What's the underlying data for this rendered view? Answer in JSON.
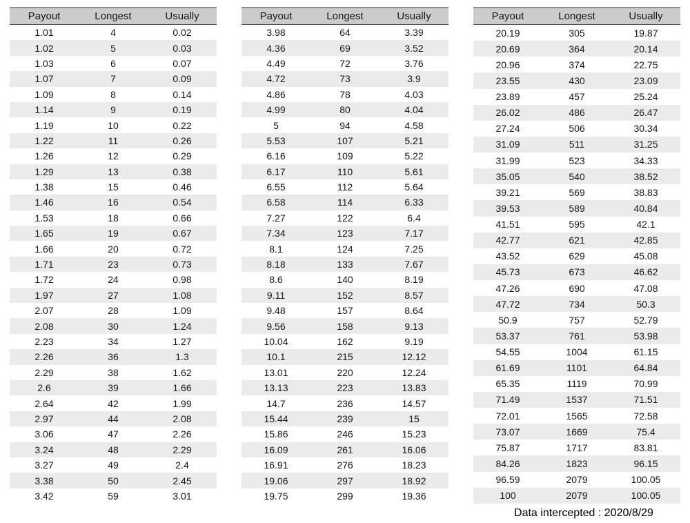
{
  "colors": {
    "header_bg": "#cccccc",
    "stripe_bg": "#ebebeb",
    "header_border_top": "#8f8f8f",
    "header_border_bottom": "#4f4f4f",
    "text": "#161616"
  },
  "footer": {
    "label": "Data intercepted : 2020/8/29"
  },
  "chart_data": [
    {
      "type": "table",
      "columns": [
        "Payout",
        "Longest",
        "Usually"
      ],
      "rows": [
        [
          1.01,
          4,
          0.02
        ],
        [
          1.02,
          5,
          0.03
        ],
        [
          1.03,
          6,
          0.07
        ],
        [
          1.07,
          7,
          0.09
        ],
        [
          1.09,
          8,
          0.14
        ],
        [
          1.14,
          9,
          0.19
        ],
        [
          1.19,
          10,
          0.22
        ],
        [
          1.22,
          11,
          0.26
        ],
        [
          1.26,
          12,
          0.29
        ],
        [
          1.29,
          13,
          0.38
        ],
        [
          1.38,
          15,
          0.46
        ],
        [
          1.46,
          16,
          0.54
        ],
        [
          1.53,
          18,
          0.66
        ],
        [
          1.65,
          19,
          0.67
        ],
        [
          1.66,
          20,
          0.72
        ],
        [
          1.71,
          23,
          0.73
        ],
        [
          1.72,
          24,
          0.98
        ],
        [
          1.97,
          27,
          1.08
        ],
        [
          2.07,
          28,
          1.09
        ],
        [
          2.08,
          30,
          1.24
        ],
        [
          2.23,
          34,
          1.27
        ],
        [
          2.26,
          36,
          1.3
        ],
        [
          2.29,
          38,
          1.62
        ],
        [
          2.6,
          39,
          1.66
        ],
        [
          2.64,
          42,
          1.99
        ],
        [
          2.97,
          44,
          2.08
        ],
        [
          3.06,
          47,
          2.26
        ],
        [
          3.24,
          48,
          2.29
        ],
        [
          3.27,
          49,
          2.4
        ],
        [
          3.38,
          50,
          2.45
        ],
        [
          3.42,
          59,
          3.01
        ]
      ]
    },
    {
      "type": "table",
      "columns": [
        "Payout",
        "Longest",
        "Usually"
      ],
      "rows": [
        [
          3.98,
          64,
          3.39
        ],
        [
          4.36,
          69,
          3.52
        ],
        [
          4.49,
          72,
          3.76
        ],
        [
          4.72,
          73,
          3.9
        ],
        [
          4.86,
          78,
          4.03
        ],
        [
          4.99,
          80,
          4.04
        ],
        [
          5,
          94,
          4.58
        ],
        [
          5.53,
          107,
          5.21
        ],
        [
          6.16,
          109,
          5.22
        ],
        [
          6.17,
          110,
          5.61
        ],
        [
          6.55,
          112,
          5.64
        ],
        [
          6.58,
          114,
          6.33
        ],
        [
          7.27,
          122,
          6.4
        ],
        [
          7.34,
          123,
          7.17
        ],
        [
          8.1,
          124,
          7.25
        ],
        [
          8.18,
          133,
          7.67
        ],
        [
          8.6,
          140,
          8.19
        ],
        [
          9.11,
          152,
          8.57
        ],
        [
          9.48,
          157,
          8.64
        ],
        [
          9.56,
          158,
          9.13
        ],
        [
          10.04,
          162,
          9.19
        ],
        [
          10.1,
          215,
          12.12
        ],
        [
          13.01,
          220,
          12.24
        ],
        [
          13.13,
          223,
          13.83
        ],
        [
          14.7,
          236,
          14.57
        ],
        [
          15.44,
          239,
          15
        ],
        [
          15.86,
          246,
          15.23
        ],
        [
          16.09,
          261,
          16.06
        ],
        [
          16.91,
          276,
          18.23
        ],
        [
          19.06,
          297,
          18.92
        ],
        [
          19.75,
          299,
          19.36
        ]
      ]
    },
    {
      "type": "table",
      "columns": [
        "Payout",
        "Longest",
        "Usually"
      ],
      "rows": [
        [
          20.19,
          305,
          19.87
        ],
        [
          20.69,
          364,
          20.14
        ],
        [
          20.96,
          374,
          22.75
        ],
        [
          23.55,
          430,
          23.09
        ],
        [
          23.89,
          457,
          25.24
        ],
        [
          26.02,
          486,
          26.47
        ],
        [
          27.24,
          506,
          30.34
        ],
        [
          31.09,
          511,
          31.25
        ],
        [
          31.99,
          523,
          34.33
        ],
        [
          35.05,
          540,
          38.52
        ],
        [
          39.21,
          569,
          38.83
        ],
        [
          39.53,
          589,
          40.84
        ],
        [
          41.51,
          595,
          42.1
        ],
        [
          42.77,
          621,
          42.85
        ],
        [
          43.52,
          629,
          45.08
        ],
        [
          45.73,
          673,
          46.62
        ],
        [
          47.26,
          690,
          47.08
        ],
        [
          47.72,
          734,
          50.3
        ],
        [
          50.9,
          757,
          52.79
        ],
        [
          53.37,
          761,
          53.98
        ],
        [
          54.55,
          1004,
          61.15
        ],
        [
          61.69,
          1101,
          64.84
        ],
        [
          65.35,
          1119,
          70.99
        ],
        [
          71.49,
          1537,
          71.51
        ],
        [
          72.01,
          1565,
          72.58
        ],
        [
          73.07,
          1669,
          75.4
        ],
        [
          75.87,
          1717,
          83.81
        ],
        [
          84.26,
          1823,
          96.15
        ],
        [
          96.59,
          2079,
          100.05
        ],
        [
          100,
          2079,
          100.05
        ]
      ]
    }
  ]
}
